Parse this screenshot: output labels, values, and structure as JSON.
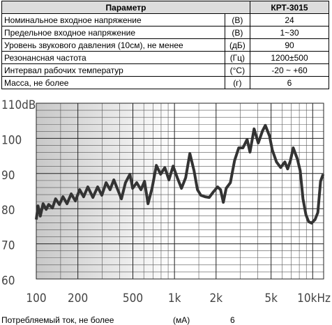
{
  "table": {
    "header": [
      "Параметр",
      "КРТ-3015"
    ],
    "rows": [
      [
        "Номинальное входное напряжение",
        "(В)",
        "24"
      ],
      [
        "Предельное входное напряжение",
        "(В)",
        "1~30"
      ],
      [
        "Уровень звукового давления (10см), не менее",
        "(дБ)",
        "90"
      ],
      [
        "Резонансная частота",
        "(Гц)",
        "1200±500"
      ],
      [
        "Интервал рабочих температур",
        "(°С)",
        "-20 ~ +60"
      ],
      [
        "Масса, не более",
        "(г)",
        "6"
      ]
    ]
  },
  "chart_data": {
    "type": "line",
    "x": [
      100,
      103,
      107,
      112,
      118,
      123,
      131,
      138,
      147,
      156,
      167,
      179,
      192,
      206,
      220,
      236,
      257,
      278,
      298,
      320,
      342,
      364,
      385,
      413,
      442,
      476,
      498,
      533,
      572,
      607,
      643,
      688,
      740,
      794,
      851,
      912,
      977,
      1048,
      1124,
      1205,
      1292,
      1385,
      1467,
      1552,
      1665,
      1785,
      1914,
      2052,
      2154,
      2258,
      2367,
      2538,
      2721,
      2917,
      3128,
      3353,
      3516,
      3769,
      4040,
      4332,
      4541,
      4869,
      5102,
      5471,
      5865,
      6288,
      6589,
      6900,
      7230,
      7750,
      8120,
      8510,
      8930,
      9350,
      9800,
      10400,
      10900,
      11400,
      11900
    ],
    "series": [
      {
        "color": "#333333",
        "values": [
          76.9,
          80.8,
          77.9,
          81.4,
          79.8,
          81.2,
          80.2,
          82.8,
          81.2,
          83.4,
          81.4,
          84.2,
          82.2,
          85.4,
          83.4,
          86.2,
          83.2,
          86.2,
          83.8,
          87.4,
          85.4,
          88.2,
          85.8,
          82.8,
          87.4,
          89.8,
          85.8,
          87.4,
          85.4,
          87.8,
          81.4,
          85.8,
          92.3,
          89.8,
          91.7,
          88.2,
          92.1,
          88.8,
          85.8,
          88.8,
          95.7,
          90.8,
          85.4,
          83.8,
          83.4,
          83.2,
          84.8,
          86.2,
          85.4,
          81.8,
          85.8,
          87.4,
          93.7,
          97.3,
          97.3,
          99.7,
          96.1,
          102.7,
          98.7,
          102.1,
          103.7,
          100.7,
          96.7,
          93.3,
          91.7,
          93.3,
          91.3,
          93.7,
          97.3,
          94.1,
          90.8,
          82.8,
          78.3,
          76.3,
          75.9,
          76.9,
          78.9,
          87.8,
          89.8
        ]
      }
    ],
    "xscale": "log",
    "xlim": [
      100,
      12000
    ],
    "ylim": [
      60,
      110
    ],
    "xticks": [
      100,
      200,
      500,
      {
        "value": 1000,
        "label": "1k"
      },
      {
        "value": 2000,
        "label": "2k"
      },
      {
        "value": 5000,
        "label": "5k"
      },
      {
        "value": 10000,
        "label": "10kHz"
      }
    ],
    "yticks": [
      60,
      70,
      80,
      90,
      100,
      {
        "value": 110,
        "label": "110dB"
      }
    ],
    "xgrid": [
      150,
      300,
      400,
      600,
      700,
      800,
      900,
      1500,
      3000,
      4000,
      6000,
      7000,
      8000,
      9000
    ],
    "ygrid": [
      62,
      64,
      66,
      68,
      72,
      74,
      76,
      78,
      82,
      84,
      86,
      88,
      92,
      94,
      96,
      98,
      102,
      104,
      106,
      108
    ],
    "grid": true
  },
  "footer": [
    "Потребляемый ток, не более",
    "(мА)",
    "6"
  ]
}
